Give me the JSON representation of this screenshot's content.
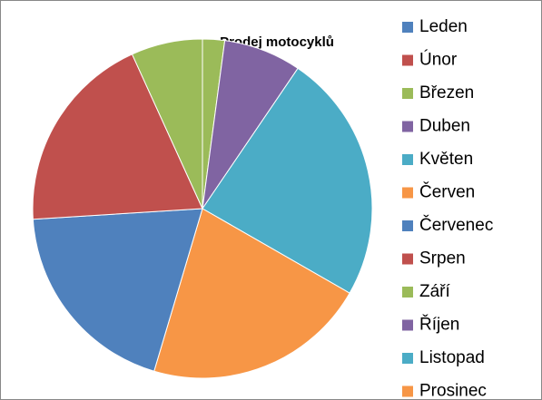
{
  "chart_data": {
    "type": "pie",
    "title": "Prodej motocyklů",
    "categories": [
      "Leden",
      "Únor",
      "Březen",
      "Duben",
      "Květen",
      "Červen",
      "Červenec",
      "Srpen",
      "Září",
      "Říjen",
      "Listopad",
      "Prosinec"
    ],
    "values": [
      0,
      0,
      2.1,
      7.4,
      23.8,
      21.3,
      19.4,
      19.2,
      6.8,
      0,
      0,
      0
    ],
    "colors": [
      "#4F81BD",
      "#C0504D",
      "#9BBB59",
      "#8064A2",
      "#4BACC6",
      "#F79646",
      "#4F81BD",
      "#C0504D",
      "#9BBB59",
      "#8064A2",
      "#4BACC6",
      "#F79646"
    ],
    "legend": "right"
  }
}
